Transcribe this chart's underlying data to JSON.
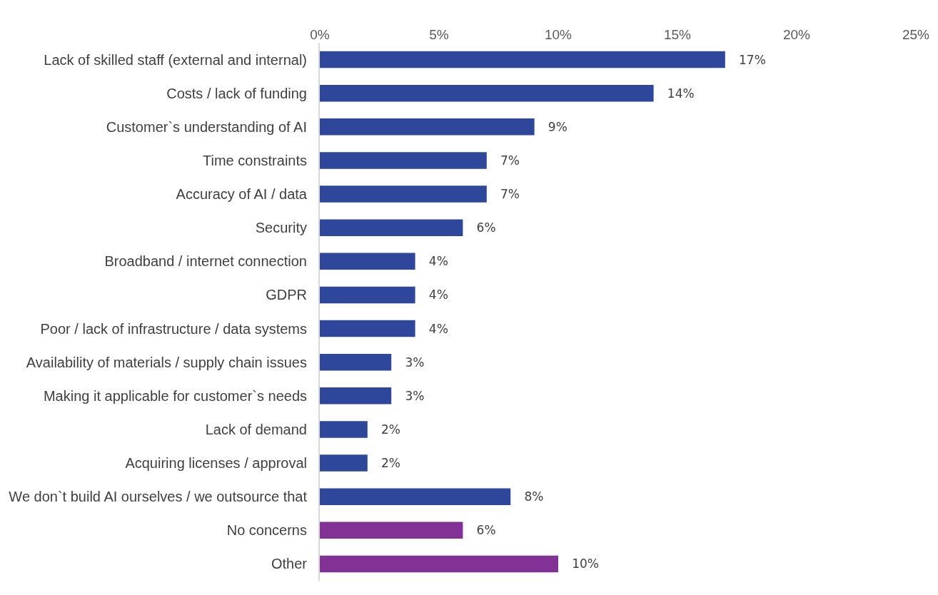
{
  "chart_data": {
    "type": "bar",
    "orientation": "horizontal",
    "categories": [
      "Lack of skilled staff (external and internal)",
      "Costs / lack of funding",
      "Customer`s understanding of AI",
      "Time constraints",
      "Accuracy of AI / data",
      "Security",
      "Broadband / internet connection",
      "GDPR",
      "Poor / lack of infrastructure / data systems",
      "Availability of materials / supply chain issues",
      "Making it applicable for customer`s needs",
      "Lack of demand",
      "Acquiring licenses / approval",
      "We don`t build AI ourselves / we outsource that",
      "No concerns",
      "Other"
    ],
    "values": [
      17,
      14,
      9,
      7,
      7,
      6,
      4,
      4,
      4,
      3,
      3,
      2,
      2,
      8,
      6,
      10
    ],
    "value_labels": [
      "17%",
      "14%",
      "9%",
      "7%",
      "7%",
      "6%",
      "4%",
      "4%",
      "4%",
      "3%",
      "3%",
      "2%",
      "2%",
      "8%",
      "6%",
      "10%"
    ],
    "colors": [
      "#2e479b",
      "#2e479b",
      "#2e479b",
      "#2e479b",
      "#2e479b",
      "#2e479b",
      "#2e479b",
      "#2e479b",
      "#2e479b",
      "#2e479b",
      "#2e479b",
      "#2e479b",
      "#2e479b",
      "#2e479b",
      "#823294",
      "#823294"
    ],
    "xlim": [
      0,
      25
    ],
    "xticks": [
      {
        "value": 0,
        "label": "0%"
      },
      {
        "value": 5,
        "label": "5%"
      },
      {
        "value": 10,
        "label": "10%"
      },
      {
        "value": 15,
        "label": "15%"
      },
      {
        "value": 20,
        "label": "20%"
      },
      {
        "value": 25,
        "label": "25%"
      }
    ]
  }
}
